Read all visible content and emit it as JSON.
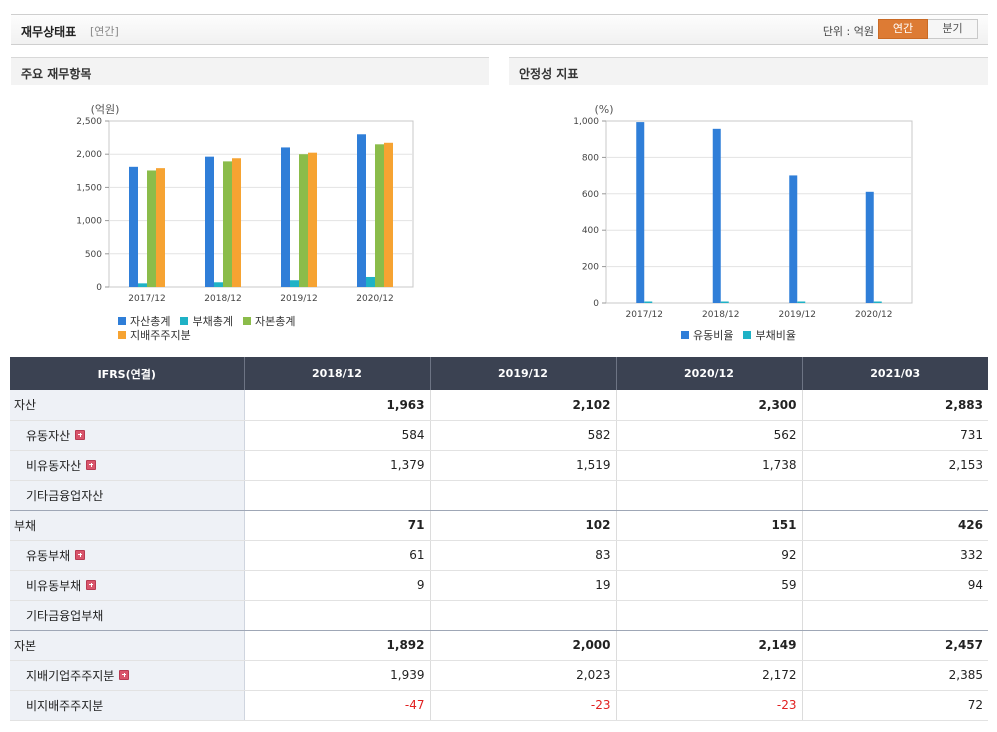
{
  "header": {
    "title": "재무상태표",
    "period_tag": "[연간]",
    "unit_label": "단위 : 억원",
    "toggle": {
      "annual": "연간",
      "quarter": "분기",
      "selected": "annual"
    }
  },
  "panels": {
    "left_title": "주요 재무항목",
    "right_title": "안정성 지표"
  },
  "chart_data": [
    {
      "type": "bar",
      "title": "주요 재무항목",
      "ylabel": "(억원)",
      "categories": [
        "2017/12",
        "2018/12",
        "2019/12",
        "2020/12"
      ],
      "ylim": [
        0,
        2500
      ],
      "yticks": [
        0,
        500,
        1000,
        1500,
        2000,
        2500
      ],
      "ytick_labels": [
        "0",
        "500",
        "1,000",
        "1,500",
        "2,000",
        "2,500"
      ],
      "grid": true,
      "legend_position": "bottom",
      "series": [
        {
          "name": "자산총계",
          "color": "#2f7ed8",
          "values": [
            1810,
            1963,
            2102,
            2300
          ]
        },
        {
          "name": "부채총계",
          "color": "#1fb2c6",
          "values": [
            55,
            71,
            102,
            151
          ]
        },
        {
          "name": "자본총계",
          "color": "#8bbc4a",
          "values": [
            1755,
            1892,
            2000,
            2149
          ]
        },
        {
          "name": "지배주주지분",
          "color": "#f6a332",
          "values": [
            1790,
            1939,
            2023,
            2172
          ]
        }
      ]
    },
    {
      "type": "bar",
      "title": "안정성 지표",
      "ylabel": "(%)",
      "categories": [
        "2017/12",
        "2018/12",
        "2019/12",
        "2020/12"
      ],
      "ylim": [
        0,
        1000
      ],
      "yticks": [
        0,
        200,
        400,
        600,
        800,
        1000
      ],
      "ytick_labels": [
        "0",
        "200",
        "400",
        "600",
        "800",
        "1,000"
      ],
      "grid": true,
      "legend_position": "bottom",
      "series": [
        {
          "name": "유동비율",
          "color": "#2f7ed8",
          "values": [
            994,
            957,
            701,
            611
          ]
        },
        {
          "name": "부채비율",
          "color": "#1fb2c6",
          "values": [
            3,
            4,
            5,
            7
          ]
        }
      ]
    }
  ],
  "table": {
    "header": [
      "IFRS(연결)",
      "2018/12",
      "2019/12",
      "2020/12",
      "2021/03"
    ],
    "rows": [
      {
        "label": "자산",
        "kind": "main",
        "expand": false,
        "values": [
          "1,963",
          "2,102",
          "2,300",
          "2,883"
        ]
      },
      {
        "label": "유동자산",
        "kind": "sub",
        "expand": true,
        "values": [
          "584",
          "582",
          "562",
          "731"
        ]
      },
      {
        "label": "비유동자산",
        "kind": "sub",
        "expand": true,
        "values": [
          "1,379",
          "1,519",
          "1,738",
          "2,153"
        ]
      },
      {
        "label": "기타금융업자산",
        "kind": "sub",
        "expand": false,
        "values": [
          "",
          "",
          "",
          ""
        ]
      },
      {
        "label": "부채",
        "kind": "main",
        "expand": false,
        "values": [
          "71",
          "102",
          "151",
          "426"
        ]
      },
      {
        "label": "유동부채",
        "kind": "sub",
        "expand": true,
        "values": [
          "61",
          "83",
          "92",
          "332"
        ]
      },
      {
        "label": "비유동부채",
        "kind": "sub",
        "expand": true,
        "values": [
          "9",
          "19",
          "59",
          "94"
        ]
      },
      {
        "label": "기타금융업부채",
        "kind": "sub",
        "expand": false,
        "values": [
          "",
          "",
          "",
          ""
        ]
      },
      {
        "label": "자본",
        "kind": "main",
        "expand": false,
        "values": [
          "1,892",
          "2,000",
          "2,149",
          "2,457"
        ]
      },
      {
        "label": "지배기업주주지분",
        "kind": "sub",
        "expand": true,
        "values": [
          "1,939",
          "2,023",
          "2,172",
          "2,385"
        ]
      },
      {
        "label": "비지배주주지분",
        "kind": "sub",
        "expand": false,
        "values": [
          "-47",
          "-23",
          "-23",
          "72"
        ]
      }
    ]
  }
}
